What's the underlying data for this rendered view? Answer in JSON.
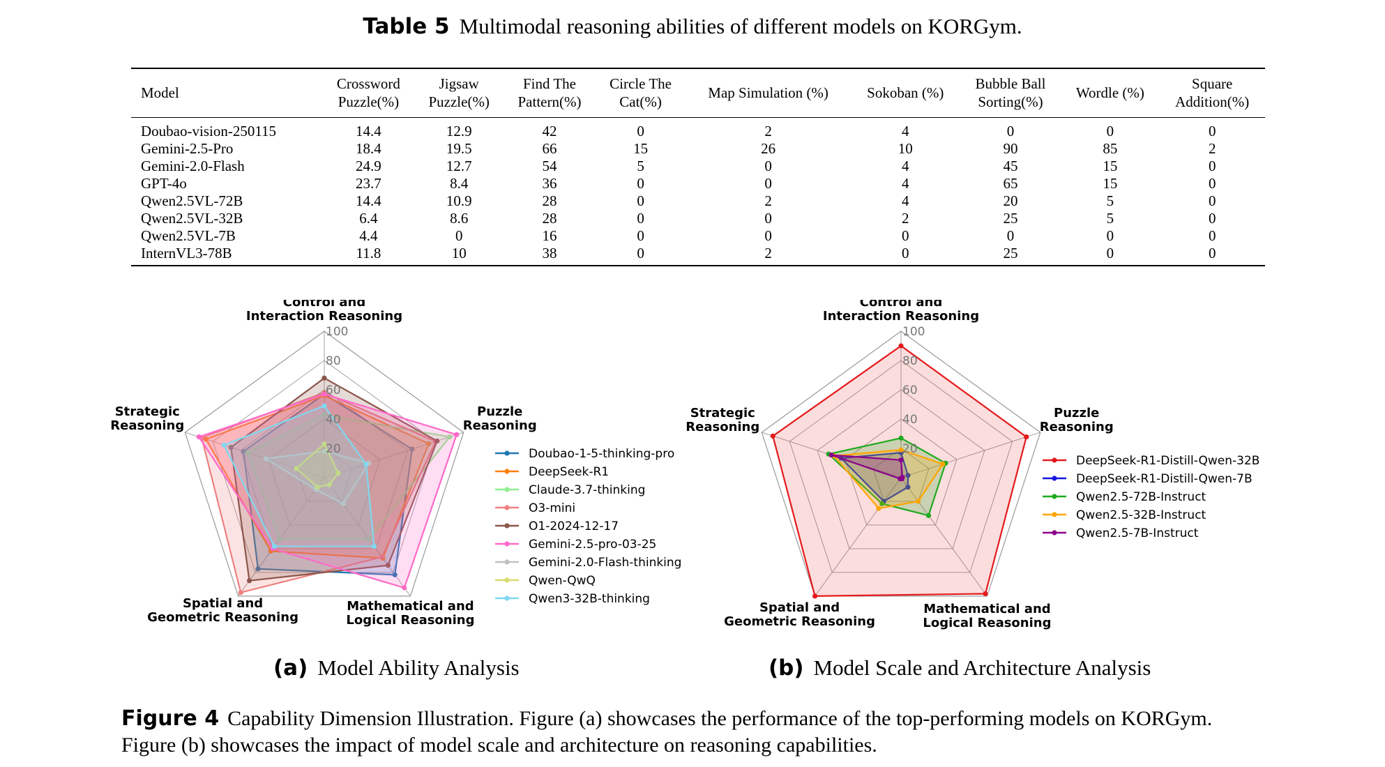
{
  "table": {
    "label": "Table 5",
    "caption": "Multimodal reasoning abilities of different models on KORGym.",
    "headers": [
      [
        "Model"
      ],
      [
        "Crossword",
        "Puzzle(%)"
      ],
      [
        "Jigsaw",
        "Puzzle(%)"
      ],
      [
        "Find The",
        "Pattern(%)"
      ],
      [
        "Circle The",
        "Cat(%)"
      ],
      [
        "Map Simulation (%)"
      ],
      [
        "Sokoban (%)"
      ],
      [
        "Bubble Ball",
        "Sorting(%)"
      ],
      [
        "Wordle (%)"
      ],
      [
        "Square",
        "Addition(%)"
      ]
    ],
    "rows": [
      [
        "Doubao-vision-250115",
        "14.4",
        "12.9",
        "42",
        "0",
        "2",
        "4",
        "0",
        "0",
        "0"
      ],
      [
        "Gemini-2.5-Pro",
        "18.4",
        "19.5",
        "66",
        "15",
        "26",
        "10",
        "90",
        "85",
        "2"
      ],
      [
        "Gemini-2.0-Flash",
        "24.9",
        "12.7",
        "54",
        "5",
        "0",
        "4",
        "45",
        "15",
        "0"
      ],
      [
        "GPT-4o",
        "23.7",
        "8.4",
        "36",
        "0",
        "0",
        "4",
        "65",
        "15",
        "0"
      ],
      [
        "Qwen2.5VL-72B",
        "14.4",
        "10.9",
        "28",
        "0",
        "2",
        "4",
        "20",
        "5",
        "0"
      ],
      [
        "Qwen2.5VL-32B",
        "6.4",
        "8.6",
        "28",
        "0",
        "0",
        "2",
        "25",
        "5",
        "0"
      ],
      [
        "Qwen2.5VL-7B",
        "4.4",
        "0",
        "16",
        "0",
        "0",
        "0",
        "0",
        "0",
        "0"
      ],
      [
        "InternVL3-78B",
        "11.8",
        "10",
        "38",
        "0",
        "2",
        "0",
        "25",
        "0",
        "0"
      ]
    ]
  },
  "chart_data": [
    {
      "type": "radar",
      "subtitle_label": "(a)",
      "subtitle": "Model Ability Analysis",
      "axes": [
        [
          "Control and",
          "Interaction Reasoning"
        ],
        [
          "Puzzle",
          "Reasoning"
        ],
        [
          "Mathematical and",
          "Logical Reasoning"
        ],
        [
          "Spatial and",
          "Geometric Reasoning"
        ],
        [
          "Strategic",
          "Reasoning"
        ]
      ],
      "rlim": [
        0,
        100
      ],
      "ticks": [
        "20",
        "40",
        "60",
        "80",
        "100"
      ],
      "grid": true,
      "legend": "right",
      "series": [
        {
          "name": "Doubao-1-5-thinking-pro",
          "color": "#1f77b4",
          "values": [
            57,
            63,
            82,
            77,
            58
          ]
        },
        {
          "name": "DeepSeek-R1",
          "color": "#ff7f0e",
          "values": [
            56,
            75,
            68,
            62,
            85
          ]
        },
        {
          "name": "Claude-3.7-thinking",
          "color": "#90ee90",
          "values": [
            43,
            90,
            52,
            52,
            55
          ]
        },
        {
          "name": "O3-mini",
          "color": "#f08080",
          "values": [
            58,
            80,
            67,
            97,
            88
          ]
        },
        {
          "name": "O1-2024-12-17",
          "color": "#8c564b",
          "values": [
            68,
            81,
            74,
            87,
            67
          ]
        },
        {
          "name": "Gemini-2.5-pro-03-25",
          "color": "#ff69c8",
          "values": [
            57,
            95,
            93,
            60,
            90
          ]
        },
        {
          "name": "Gemini-2.0-Flash-thinking",
          "color": "#c0c0c0",
          "values": [
            18,
            32,
            22,
            10,
            42
          ]
        },
        {
          "name": "Qwen-QwQ",
          "color": "#d7dc6e",
          "values": [
            23,
            10,
            6,
            8,
            20
          ]
        },
        {
          "name": "Qwen3-32B-thinking",
          "color": "#80d8f0",
          "values": [
            49,
            30,
            58,
            58,
            72
          ]
        }
      ]
    },
    {
      "type": "radar",
      "subtitle_label": "(b)",
      "subtitle": "Model Scale and Architecture Analysis",
      "axes": [
        [
          "Control and",
          "Interaction Reasoning"
        ],
        [
          "Puzzle",
          "Reasoning"
        ],
        [
          "Mathematical and",
          "Logical Reasoning"
        ],
        [
          "Spatial and",
          "Geometric Reasoning"
        ],
        [
          "Strategic",
          "Reasoning"
        ]
      ],
      "rlim": [
        0,
        100
      ],
      "ticks": [
        "20",
        "40",
        "60",
        "80",
        "100"
      ],
      "grid": true,
      "legend": "right",
      "series": [
        {
          "name": "DeepSeek-R1-Distill-Qwen-32B",
          "color": "#e41a1c",
          "values": [
            90,
            90,
            98,
            100,
            92
          ],
          "fill": true
        },
        {
          "name": "DeepSeek-R1-Distill-Qwen-7B",
          "color": "#1515e0",
          "values": [
            17,
            5,
            8,
            20,
            43
          ]
        },
        {
          "name": "Qwen2.5-72B-Instruct",
          "color": "#1faa1f",
          "values": [
            27,
            32,
            32,
            22,
            52
          ]
        },
        {
          "name": "Qwen2.5-32B-Instruct",
          "color": "#ffa500",
          "values": [
            19,
            30,
            20,
            26,
            48
          ]
        },
        {
          "name": "Qwen2.5-7B-Instruct",
          "color": "#8b008b",
          "values": [
            12,
            1,
            1,
            1,
            50
          ]
        }
      ]
    }
  ],
  "figure": {
    "label": "Figure 4",
    "caption": "Capability Dimension Illustration. Figure (a) showcases the performance of the top-performing models on KORGym. Figure (b) showcases the impact of model scale and architecture on reasoning capabilities."
  }
}
